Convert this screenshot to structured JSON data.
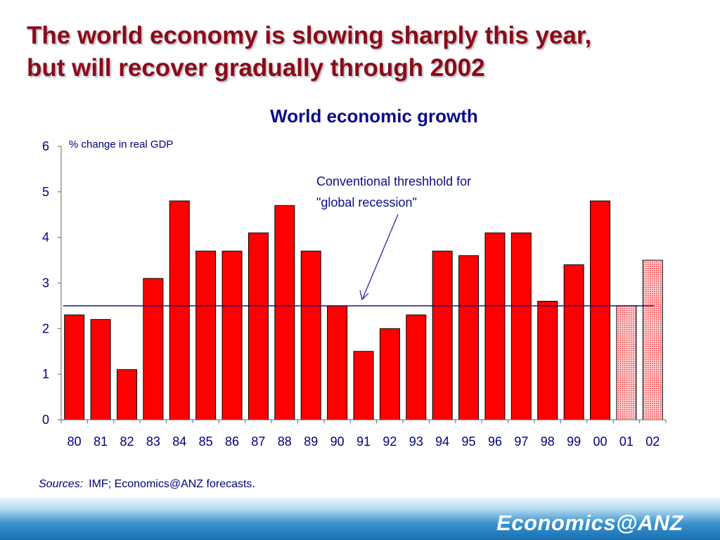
{
  "slide": {
    "title_lines": [
      "The world economy is slowing sharply this year,",
      "but will recover gradually through 2002"
    ]
  },
  "chart_data": {
    "type": "bar",
    "title": "World economic growth",
    "unit_label": "% change in real GDP",
    "categories": [
      "80",
      "81",
      "82",
      "83",
      "84",
      "85",
      "86",
      "87",
      "88",
      "89",
      "90",
      "91",
      "92",
      "93",
      "94",
      "95",
      "96",
      "97",
      "98",
      "99",
      "00",
      "01",
      "02"
    ],
    "values": [
      2.3,
      2.2,
      1.1,
      3.1,
      4.8,
      3.7,
      3.7,
      4.1,
      4.7,
      3.7,
      2.5,
      1.5,
      2.0,
      2.3,
      3.7,
      3.6,
      4.1,
      4.1,
      2.6,
      3.4,
      4.8,
      2.5,
      3.5
    ],
    "forecast_categories": [
      "01",
      "02"
    ],
    "ylim": [
      0,
      6
    ],
    "yticks": [
      "0",
      "1",
      "2",
      "3",
      "4",
      "5",
      "6"
    ],
    "threshold": {
      "value": 2.5,
      "label_lines": [
        "Conventional threshhold for",
        "\"global recession\""
      ]
    },
    "colors": {
      "bar": "#ff0000",
      "forecast_fill": "#ffc8c8",
      "threshold": "#00008b"
    }
  },
  "footer": {
    "sources_label": "Sources:",
    "sources_text": "IMF; Economics@ANZ forecasts.",
    "brand": "Economics@ANZ"
  }
}
